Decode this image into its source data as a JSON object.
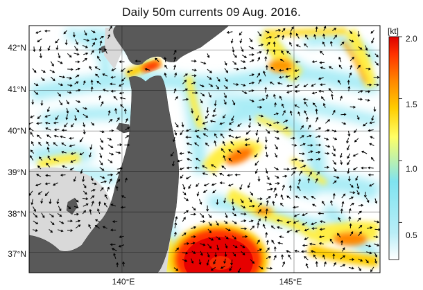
{
  "title": "Daily 50m currents 09 Aug. 2016.",
  "map": {
    "lon_range": [
      137.3,
      147.5
    ],
    "lat_range": [
      36.5,
      42.6
    ],
    "lat_ticks": [
      {
        "value": 42,
        "label": "42°N"
      },
      {
        "value": 41,
        "label": "41°N"
      },
      {
        "value": 40,
        "label": "40°N"
      },
      {
        "value": 39,
        "label": "39°N"
      },
      {
        "value": 38,
        "label": "38°N"
      },
      {
        "value": 37,
        "label": "37°N"
      }
    ],
    "lon_ticks": [
      {
        "value": 140,
        "label": "140°E"
      },
      {
        "value": 145,
        "label": "145°E"
      }
    ],
    "colors": {
      "land": "#595959",
      "shelf": "#d8d8d8",
      "water": "#ffffff",
      "gridline": "#000000",
      "arrow": "#000000"
    }
  },
  "colorbar": {
    "unit": "[kt]",
    "range": [
      0.2,
      2.0
    ],
    "ticks": [
      {
        "value": 2.0,
        "label": "2.0"
      },
      {
        "value": 1.5,
        "label": "1.5"
      },
      {
        "value": 1.0,
        "label": "1.0"
      },
      {
        "value": 0.5,
        "label": "0.5"
      }
    ],
    "stops": [
      "#ffffff",
      "#b9eef7",
      "#7fe3f0",
      "#ffff66",
      "#ffcc00",
      "#ff8800",
      "#ff3300",
      "#dd0000"
    ]
  }
}
